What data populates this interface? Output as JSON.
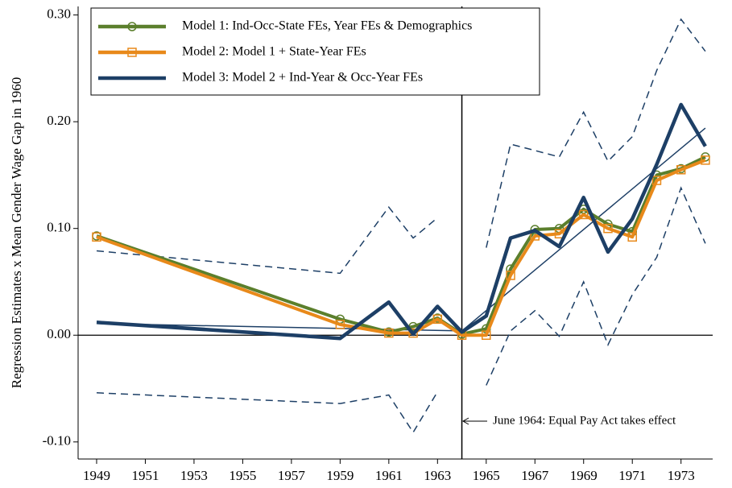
{
  "chart_data": {
    "type": "line",
    "y_label": "Regression Estimates x Mean Gender Wage Gap in 1960",
    "x": [
      1949,
      1959,
      1961,
      1962,
      1963,
      1964,
      1965,
      1966,
      1967,
      1968,
      1969,
      1970,
      1971,
      1972,
      1973,
      1974
    ],
    "series": [
      {
        "name": "Model 1: Ind-Occ-State FEs, Year FEs & Demographics",
        "color": "#5b7f2c",
        "marker": "circle",
        "values": [
          0.093,
          0.015,
          0.003,
          0.008,
          0.016,
          0.001,
          0.006,
          0.062,
          0.099,
          0.1,
          0.118,
          0.104,
          0.097,
          0.15,
          0.156,
          0.167
        ]
      },
      {
        "name": "Model 2: Model 1 + State-Year FEs",
        "color": "#e8891a",
        "marker": "square",
        "values": [
          0.092,
          0.01,
          0.002,
          0.002,
          0.015,
          0.0,
          0.0,
          0.056,
          0.093,
          0.095,
          0.113,
          0.1,
          0.092,
          0.145,
          0.155,
          0.164
        ]
      },
      {
        "name": "Model 3: Model 2 + Ind-Year & Occ-Year FEs",
        "color": "#1d3f66",
        "marker": "none",
        "values": [
          0.012,
          -0.003,
          0.031,
          0.001,
          0.027,
          0.003,
          0.018,
          0.091,
          0.098,
          0.083,
          0.129,
          0.078,
          0.109,
          0.16,
          0.216,
          0.177
        ],
        "upper": [
          0.079,
          0.058,
          0.12,
          0.091,
          0.11,
          null,
          0.082,
          0.179,
          0.173,
          0.167,
          0.209,
          0.163,
          0.186,
          0.248,
          0.296,
          0.266
        ],
        "lower": [
          -0.054,
          -0.064,
          -0.056,
          -0.091,
          -0.053,
          null,
          -0.047,
          0.004,
          0.023,
          -0.001,
          0.05,
          -0.009,
          0.038,
          0.073,
          0.138,
          0.086
        ]
      }
    ],
    "trend_lines": [
      {
        "x": [
          1949,
          1964
        ],
        "values": [
          0.011,
          0.004
        ],
        "color": "#1d3f66"
      },
      {
        "x": [
          1964,
          1974
        ],
        "values": [
          0.004,
          0.194
        ],
        "color": "#1d3f66"
      }
    ],
    "vline": 1964,
    "annotation": "June 1964: Equal Pay Act takes effect",
    "xlim": [
      1948.24,
      1974.3
    ],
    "xticks": [
      1949,
      1951,
      1953,
      1955,
      1957,
      1959,
      1961,
      1963,
      1965,
      1967,
      1969,
      1971,
      1973
    ],
    "ylim": [
      -0.116,
      0.308
    ],
    "yticks": [
      {
        "value": 0.3,
        "label": "0.30"
      },
      {
        "value": 0.2,
        "label": "0.20"
      },
      {
        "value": 0.1,
        "label": "0.10"
      },
      {
        "value": 0,
        "label": "0.00"
      },
      {
        "value": -0.1,
        "label": "-0.10"
      }
    ]
  }
}
